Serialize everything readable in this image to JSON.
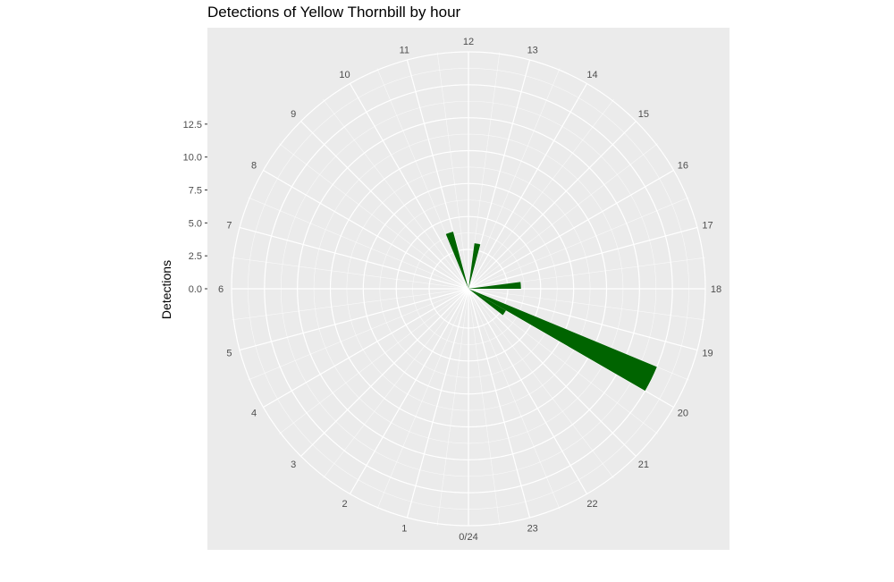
{
  "chart_data": {
    "type": "bar",
    "coord": "polar",
    "title": "Detections of Yellow Thornbill by hour",
    "ylabel": "Detections",
    "xlabel": "",
    "hour_labels": [
      "0/24",
      "1",
      "2",
      "3",
      "4",
      "5",
      "6",
      "7",
      "8",
      "9",
      "10",
      "11",
      "12",
      "13",
      "14",
      "15",
      "16",
      "17",
      "18",
      "19",
      "20",
      "21",
      "22",
      "23"
    ],
    "y_ticks": [
      "0.0",
      "2.5",
      "5.0",
      "7.5",
      "10.0",
      "12.5"
    ],
    "y_tick_values": [
      0,
      2.5,
      5,
      7.5,
      10,
      12.5
    ],
    "ylim": [
      -2.5,
      15
    ],
    "bar_width_hours": 0.5,
    "bars": [
      {
        "hour": 10.5,
        "value": 1.5
      },
      {
        "hour": 12.5,
        "value": 0.5
      },
      {
        "hour": 17.5,
        "value": 1.0
      },
      {
        "hour": 19.5,
        "value": 12.5
      },
      {
        "hour": 20.0,
        "value": 0.3
      }
    ],
    "colors": {
      "panel": "#ebebeb",
      "grid": "#ffffff",
      "bar": "#006400"
    },
    "grid": true,
    "legend": "none"
  }
}
